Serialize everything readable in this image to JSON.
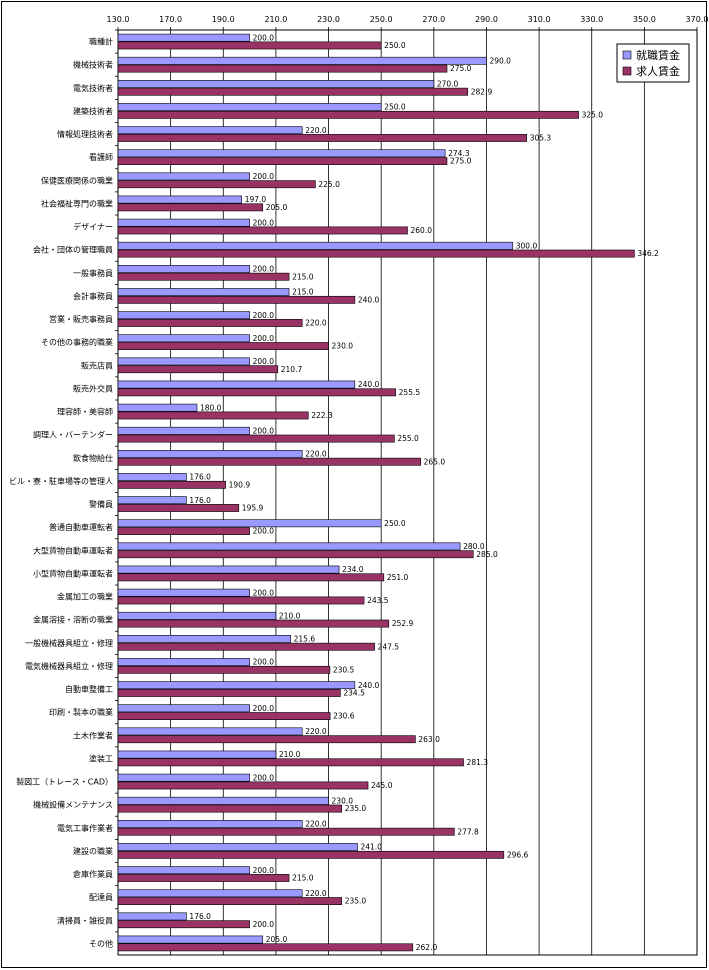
{
  "chart_data": {
    "type": "bar",
    "orientation": "horizontal",
    "title": "",
    "xlabel": "",
    "ylabel": "",
    "xlim": [
      130,
      370
    ],
    "xticks": [
      "130.0",
      "170.0",
      "190.0",
      "210.0",
      "230.0",
      "250.0",
      "270.0",
      "290.0",
      "310.0",
      "330.0",
      "350.0",
      "370.0"
    ],
    "xtick_values": [
      130,
      170,
      190,
      210,
      230,
      250,
      270,
      290,
      310,
      330,
      350,
      370
    ],
    "grid": true,
    "legend_position": "top-right",
    "categories": [
      "職種計",
      "機械技術者",
      "電気技術者",
      "建築技術者",
      "情報処理技術者",
      "看護師",
      "保健医療関係の職業",
      "社会福祉専門の職業",
      "デザイナー",
      "会社・団体の管理職員",
      "一般事務員",
      "会計事務員",
      "営業・販売事務員",
      "その他の事務的職業",
      "販売店員",
      "販売外交員",
      "理容師・美容師",
      "調理人・バーテンダー",
      "飲食物給仕",
      "ビル・寮・駐車場等の管理人",
      "警備員",
      "普通自動車運転者",
      "大型貨物自動車運転者",
      "小型貨物自動車運転者",
      "金属加工の職業",
      "金属溶接・溶断の職業",
      "一般機械器具組立・修理",
      "電気機械器具組立・修理",
      "自動車整備工",
      "印刷・製本の職業",
      "土木作業者",
      "塗装工",
      "製図工（トレース・CAD）",
      "機械設備メンテナンス",
      "電気工事作業者",
      "建設の職業",
      "倉庫作業員",
      "配達員",
      "清掃員・雑役員",
      "その他"
    ],
    "series": [
      {
        "name": "就職賃金",
        "color": "#9999ff",
        "values": [
          200.0,
          290.0,
          270.0,
          250.0,
          220.0,
          274.3,
          200.0,
          197.0,
          200.0,
          300.0,
          200.0,
          215.0,
          200.0,
          200.0,
          200.0,
          240.0,
          180.0,
          200.0,
          220.0,
          176.0,
          176.0,
          250.0,
          280.0,
          234.0,
          200.0,
          210.0,
          215.6,
          200.0,
          240.0,
          200.0,
          220.0,
          210.0,
          200.0,
          230.0,
          220.0,
          241.0,
          200.0,
          220.0,
          176.0,
          205.0
        ],
        "labels": [
          "200.0",
          "290.0",
          "270.0",
          "250.0",
          "220.0",
          "274.3",
          "200.0",
          "197.0",
          "200.0",
          "300.0",
          "200.0",
          "215.0",
          "200.0",
          "200.0",
          "200.0",
          "240.0",
          "180.0",
          "200.0",
          "220.0",
          "176.0",
          "176.0",
          "250.0",
          "280.0",
          "234.0",
          "200.0",
          "210.0",
          "215.6",
          "200.0",
          "240.0",
          "200.0",
          "220.0",
          "210.0",
          "200.0",
          "230.0",
          "220.0",
          "241.0",
          "200.0",
          "220.0",
          "176.0",
          "205.0"
        ]
      },
      {
        "name": "求人賃金",
        "color": "#993366",
        "values": [
          250.0,
          275.0,
          282.9,
          325.0,
          305.3,
          275.0,
          225.0,
          205.0,
          260.0,
          346.2,
          215.0,
          240.0,
          220.0,
          230.0,
          210.7,
          255.5,
          222.3,
          255.0,
          265.0,
          190.9,
          195.9,
          200.0,
          285.0,
          251.0,
          243.5,
          252.9,
          247.5,
          230.5,
          234.5,
          230.6,
          263.0,
          281.3,
          245.0,
          235.0,
          277.8,
          296.6,
          215.0,
          235.0,
          200.0,
          262.0
        ],
        "labels": [
          "250.0",
          "275.0",
          "282.9",
          "325.0",
          "305.3",
          "275.0",
          "225.0",
          "205.0",
          "260.0",
          "346.2",
          "215.0",
          "240.0",
          "220.0",
          "230.0",
          "210.7",
          "255.5",
          "222.3",
          "255.0",
          "265.0",
          "190.9",
          "195.9",
          "200.0",
          "285.0",
          "251.0",
          "243.5",
          "252.9",
          "247.5",
          "230.5",
          "234.5",
          "230.6",
          "263.0",
          "281.3",
          "245.0",
          "235.0",
          "277.8",
          "296.6",
          "215.0",
          "235.0",
          "200.0",
          "262.0"
        ]
      }
    ]
  }
}
